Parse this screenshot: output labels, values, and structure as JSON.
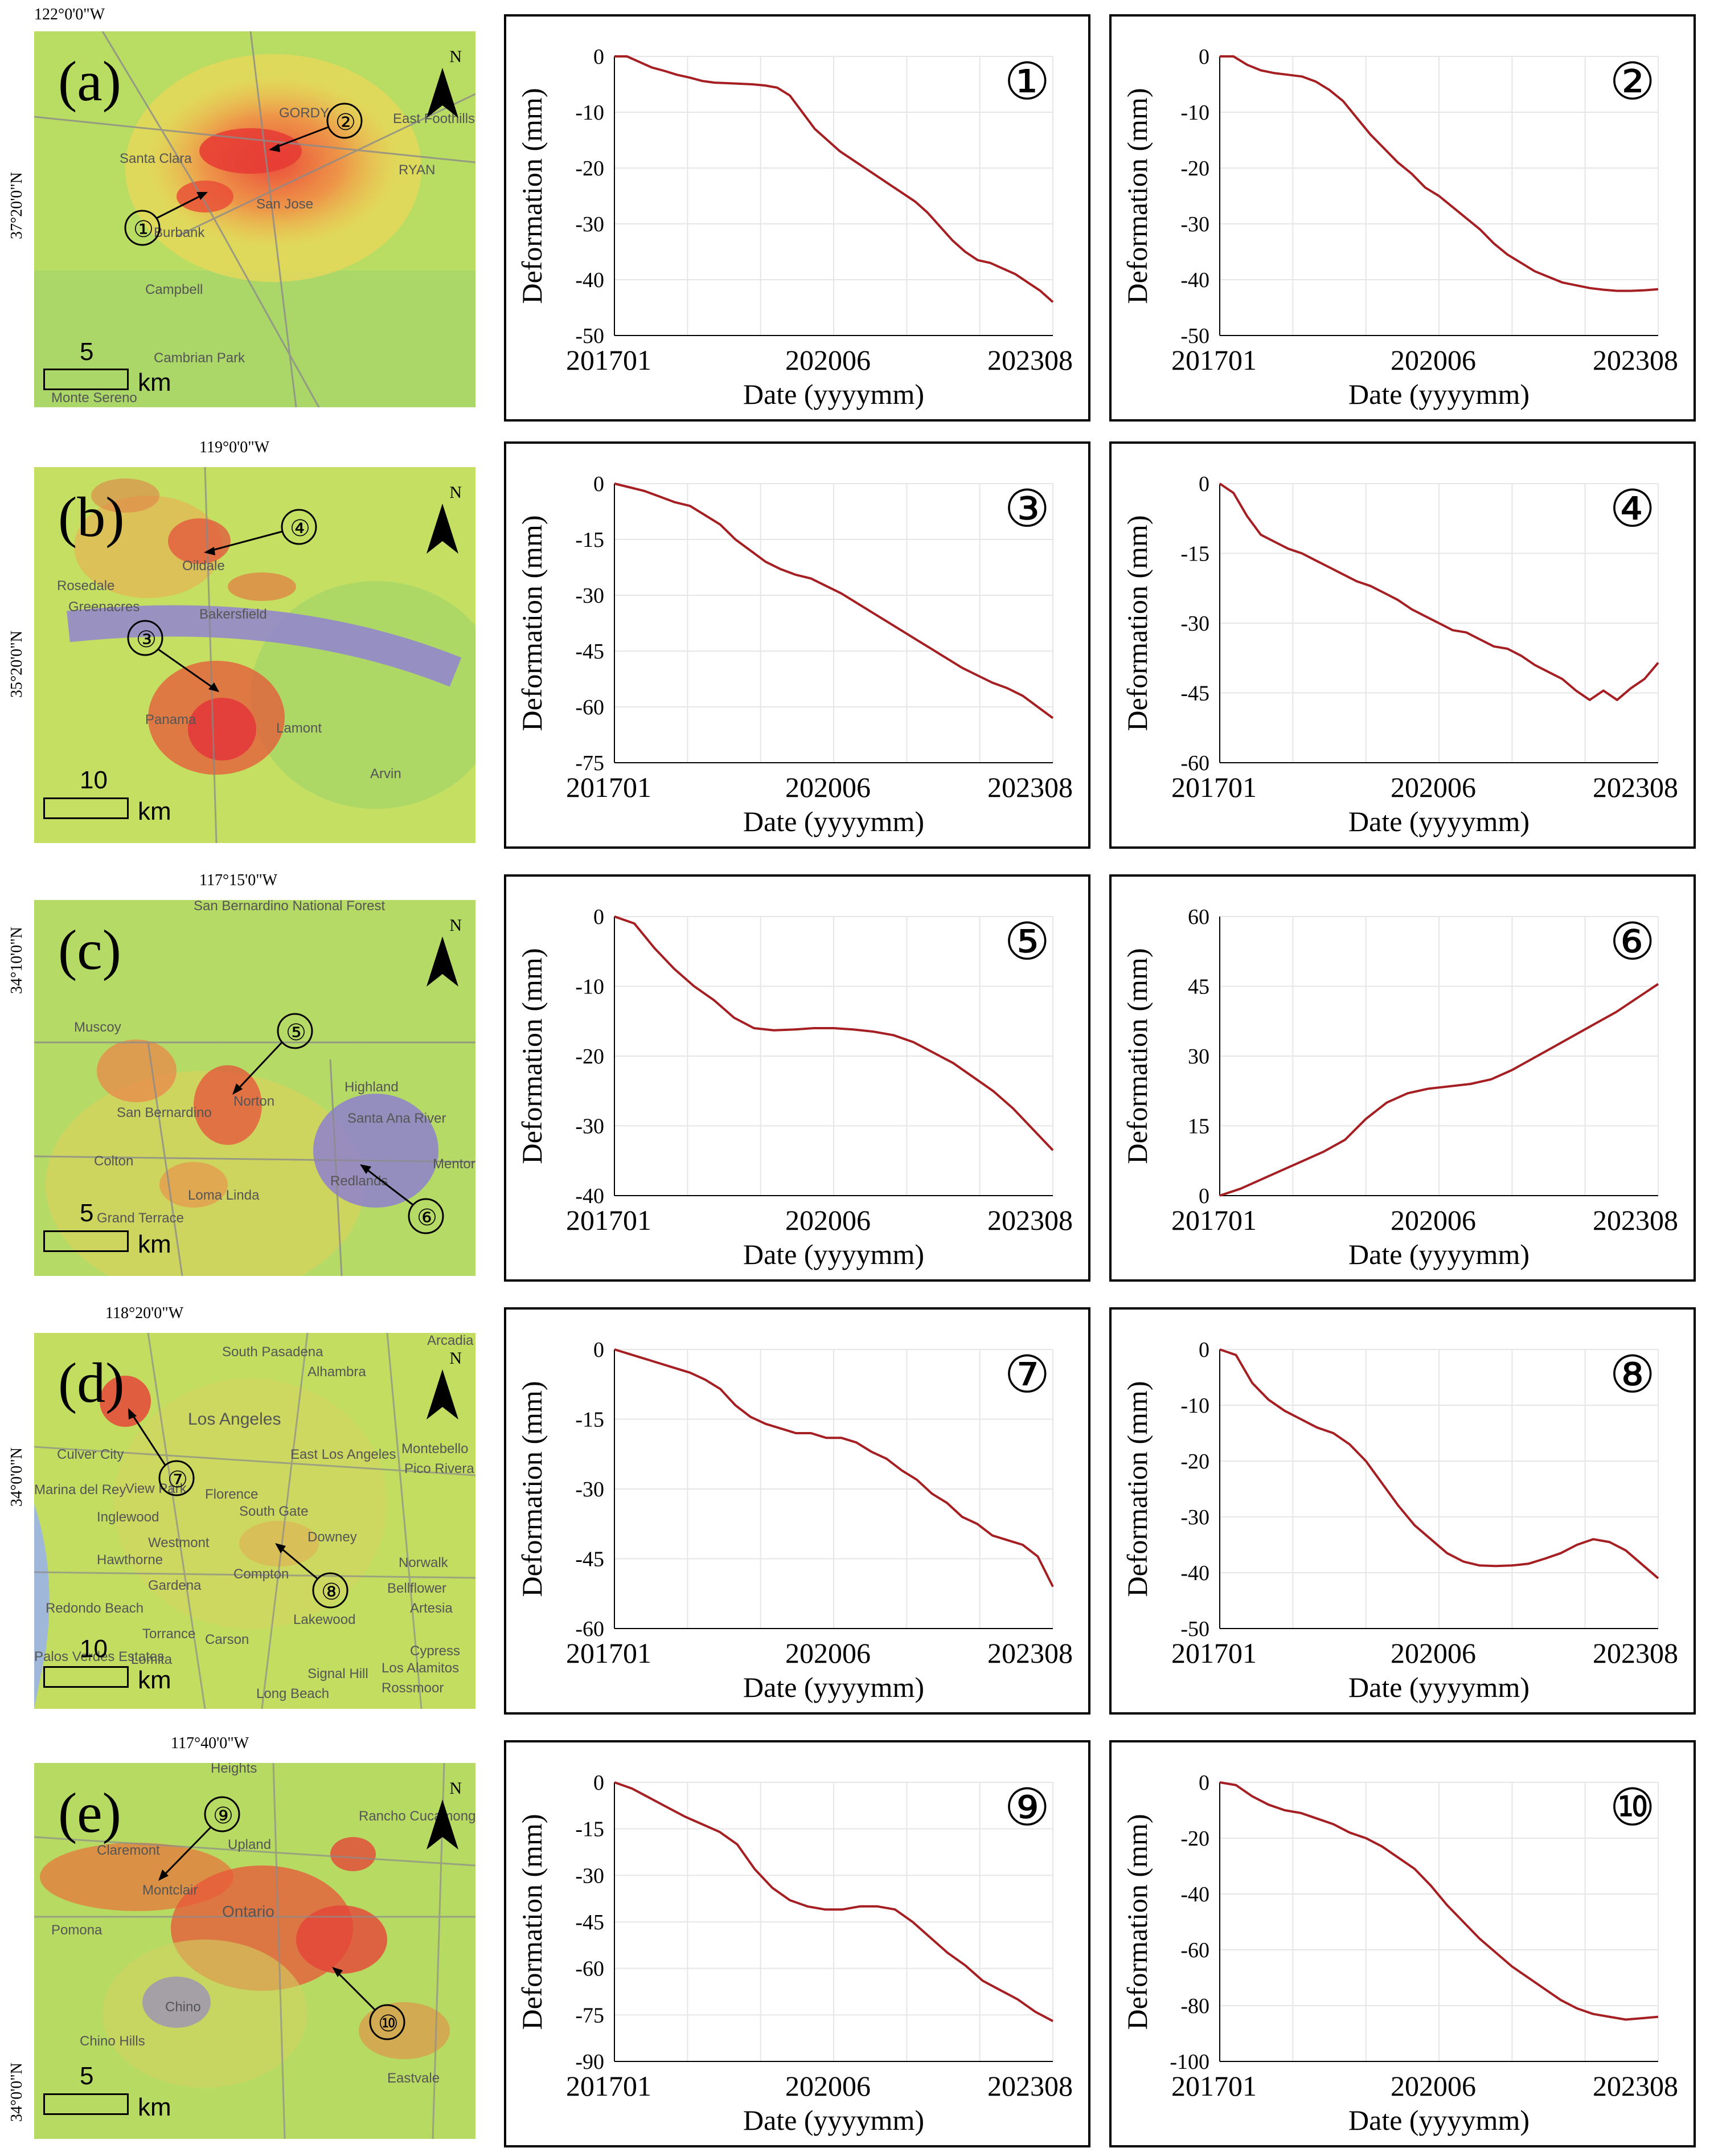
{
  "colors": {
    "line": "#a51e22",
    "grid": "#e6e6e6",
    "subsidence": "#e8413a",
    "uplift": "#7f6fd6"
  },
  "rows": [
    {
      "panel": "(a)",
      "coord_top": "122°0'0\"W",
      "coord_side": "37°20'0\"N",
      "scale_value": "5",
      "scale_unit": "km",
      "north": "N",
      "north_icon": "north-arrow-icon",
      "places": [
        "Santa Clara",
        "San Jose",
        "Burbank",
        "Campbell",
        "Cambrian Park",
        "East Foothills",
        "Monte Sereno",
        "RYAN",
        "GORDY"
      ]
    },
    {
      "panel": "(b)",
      "coord_top": "119°0'0\"W",
      "coord_side": "35°20'0\"N",
      "scale_value": "10",
      "scale_unit": "km",
      "north": "N",
      "north_icon": "north-arrow-icon",
      "places": [
        "Rosedale",
        "Greenacres",
        "Bakersfield",
        "Oildale",
        "Panama",
        "Lamont",
        "Arvin"
      ]
    },
    {
      "panel": "(c)",
      "coord_top": "117°15'0\"W",
      "coord_side": "34°10'0\"N",
      "scale_value": "5",
      "scale_unit": "km",
      "north": "N",
      "north_icon": "north-arrow-icon",
      "places": [
        "San Bernardino National Forest",
        "Muscoy",
        "San Bernardino",
        "Colton",
        "Loma Linda",
        "Grand Terrace",
        "Highland",
        "Redlands",
        "Santa Ana River",
        "Norton",
        "Mentone"
      ]
    },
    {
      "panel": "(d)",
      "coord_top": "118°20'0\"W",
      "coord_side": "34°0'0\"N",
      "scale_value": "10",
      "scale_unit": "km",
      "north": "N",
      "north_icon": "north-arrow-icon",
      "places": [
        "South Pasadena",
        "Alhambra",
        "Los Angeles",
        "Culver City",
        "View Park",
        "Inglewood",
        "Westmont",
        "Hawthorne",
        "Compton",
        "South Gate",
        "Downey",
        "Norwalk",
        "Bellflower",
        "Torrance",
        "Carson",
        "Lakewood",
        "Long Beach",
        "Redondo Beach",
        "Montebello",
        "Pico Rivera",
        "Artesia",
        "Cypress",
        "Los Alamitos",
        "Signal Hill",
        "Rossmoor",
        "Florence",
        "East Los Angeles",
        "Gardena",
        "Lomita",
        "Palos Verdes Estates",
        "Marina del Rey",
        "Arcadia"
      ]
    },
    {
      "panel": "(e)",
      "coord_top": "117°40'0\"W",
      "coord_side": "34°0'0\"N",
      "scale_value": "5",
      "scale_unit": "km",
      "north": "N",
      "north_icon": "north-arrow-icon",
      "places": [
        "Claremont",
        "Upland",
        "Rancho Cucamonga",
        "Montclair",
        "Ontario",
        "Pomona",
        "Chino",
        "Chino Hills",
        "Eastvale",
        "Heights"
      ]
    }
  ],
  "chart_data": [
    {
      "type": "line",
      "id": "1",
      "title": "①",
      "xlabel": "Date (yyyymm)",
      "ylabel": "Deformation (mm)",
      "xtick_labels": [
        "201701",
        "202006",
        "202308"
      ],
      "yticks": [
        0,
        -10,
        -20,
        -30,
        -40,
        -50
      ],
      "ylim": [
        -50,
        0
      ],
      "series": [
        {
          "name": "point 1",
          "values": [
            0,
            0,
            -1,
            -2,
            -2.6,
            -3.3,
            -3.8,
            -4.4,
            -4.7,
            -4.8,
            -4.9,
            -5,
            -5.2,
            -5.6,
            -7,
            -10,
            -13,
            -15,
            -17,
            -18.5,
            -20,
            -21.5,
            -23,
            -24.5,
            -26,
            -28,
            -30.5,
            -33,
            -35,
            -36.5,
            -37,
            -38,
            -39,
            -40.5,
            -42,
            -44
          ]
        }
      ]
    },
    {
      "type": "line",
      "id": "2",
      "title": "②",
      "xlabel": "Date (yyyymm)",
      "ylabel": "Deformation (mm)",
      "xtick_labels": [
        "201701",
        "202006",
        "202308"
      ],
      "yticks": [
        0,
        -10,
        -20,
        -30,
        -40,
        -50
      ],
      "ylim": [
        -50,
        0
      ],
      "series": [
        {
          "name": "point 2",
          "values": [
            0,
            0,
            -1.5,
            -2.5,
            -3,
            -3.3,
            -3.6,
            -4.5,
            -6,
            -8,
            -11,
            -14,
            -16.5,
            -19,
            -21,
            -23.5,
            -25,
            -27,
            -29,
            -31,
            -33.5,
            -35.5,
            -37,
            -38.5,
            -39.5,
            -40.5,
            -41,
            -41.5,
            -41.8,
            -42,
            -42,
            -41.9,
            -41.7
          ]
        }
      ]
    },
    {
      "type": "line",
      "id": "3",
      "title": "③",
      "xlabel": "Date (yyyymm)",
      "ylabel": "Deformation (mm)",
      "xtick_labels": [
        "201701",
        "202006",
        "202308"
      ],
      "yticks": [
        0,
        -15,
        -30,
        -45,
        -60,
        -75
      ],
      "ylim": [
        -75,
        0
      ],
      "series": [
        {
          "name": "point 3",
          "values": [
            0,
            -1,
            -2,
            -3.5,
            -5,
            -6,
            -8.5,
            -11,
            -15,
            -18,
            -21,
            -23,
            -24.5,
            -25.5,
            -27.5,
            -29.5,
            -32,
            -34.5,
            -37,
            -39.5,
            -42,
            -44.5,
            -47,
            -49.5,
            -51.5,
            -53.5,
            -55,
            -57,
            -60,
            -63
          ]
        }
      ]
    },
    {
      "type": "line",
      "id": "4",
      "title": "④",
      "xlabel": "Date (yyyymm)",
      "ylabel": "Deformation (mm)",
      "xtick_labels": [
        "201701",
        "202006",
        "202308"
      ],
      "yticks": [
        0,
        -15,
        -30,
        -45,
        -60
      ],
      "ylim": [
        -60,
        0
      ],
      "series": [
        {
          "name": "point 4",
          "values": [
            0,
            -2,
            -7,
            -11,
            -12.5,
            -14,
            -15,
            -16.5,
            -18,
            -19.5,
            -21,
            -22,
            -23.5,
            -25,
            -27,
            -28.5,
            -30,
            -31.5,
            -32,
            -33.5,
            -35,
            -35.5,
            -37,
            -39,
            -40.5,
            -42,
            -44.5,
            -46.5,
            -44.5,
            -46.5,
            -44,
            -42,
            -38.5
          ]
        }
      ]
    },
    {
      "type": "line",
      "id": "5",
      "title": "⑤",
      "xlabel": "Date (yyyymm)",
      "ylabel": "Deformation (mm)",
      "xtick_labels": [
        "201701",
        "202006",
        "202308"
      ],
      "yticks": [
        0,
        -10,
        -20,
        -30,
        -40
      ],
      "ylim": [
        -40,
        0
      ],
      "series": [
        {
          "name": "point 5",
          "values": [
            0,
            -1,
            -4.5,
            -7.5,
            -10,
            -12,
            -14.5,
            -16,
            -16.3,
            -16.2,
            -16,
            -16,
            -16.2,
            -16.5,
            -17,
            -18,
            -19.5,
            -21,
            -23,
            -25,
            -27.5,
            -30.5,
            -33.5
          ]
        }
      ]
    },
    {
      "type": "line",
      "id": "6",
      "title": "⑥",
      "xlabel": "Date (yyyymm)",
      "ylabel": "Deformation (mm)",
      "xtick_labels": [
        "201701",
        "202006",
        "202308"
      ],
      "yticks": [
        0,
        15,
        30,
        45,
        60
      ],
      "ylim": [
        0,
        60
      ],
      "series": [
        {
          "name": "point 6",
          "values": [
            0,
            1.5,
            3.5,
            5.5,
            7.5,
            9.5,
            12,
            16.5,
            20,
            22,
            23,
            23.5,
            24,
            25,
            27,
            29.5,
            32,
            34.5,
            37,
            39.5,
            42.5,
            45.5
          ]
        }
      ]
    },
    {
      "type": "line",
      "id": "7",
      "title": "⑦",
      "xlabel": "Date (yyyymm)",
      "ylabel": "Deformation (mm)",
      "xtick_labels": [
        "201701",
        "202006",
        "202308"
      ],
      "yticks": [
        0,
        -15,
        -30,
        -45,
        -60
      ],
      "ylim": [
        -60,
        0
      ],
      "series": [
        {
          "name": "point 7",
          "values": [
            0,
            -1,
            -2,
            -3,
            -4,
            -5,
            -6.5,
            -8.5,
            -12,
            -14.5,
            -16,
            -17,
            -18,
            -18,
            -19,
            -19,
            -20,
            -22,
            -23.5,
            -26,
            -28,
            -31,
            -33,
            -36,
            -37.5,
            -40,
            -41,
            -42,
            -44.5,
            -51
          ]
        }
      ]
    },
    {
      "type": "line",
      "id": "8",
      "title": "⑧",
      "xlabel": "Date (yyyymm)",
      "ylabel": "Deformation (mm)",
      "xtick_labels": [
        "201701",
        "202006",
        "202308"
      ],
      "yticks": [
        0,
        -10,
        -20,
        -30,
        -40,
        -50
      ],
      "ylim": [
        -50,
        0
      ],
      "series": [
        {
          "name": "point 8",
          "values": [
            0,
            -1,
            -6,
            -9,
            -11,
            -12.5,
            -14,
            -15,
            -17,
            -20,
            -24,
            -28,
            -31.5,
            -34,
            -36.5,
            -38,
            -38.7,
            -38.8,
            -38.7,
            -38.4,
            -37.5,
            -36.5,
            -35,
            -34,
            -34.5,
            -36,
            -38.5,
            -41
          ]
        }
      ]
    },
    {
      "type": "line",
      "id": "9",
      "title": "⑨",
      "xlabel": "Date (yyyymm)",
      "ylabel": "Deformation (mm)",
      "xtick_labels": [
        "201701",
        "202006",
        "202308"
      ],
      "yticks": [
        0,
        -15,
        -30,
        -45,
        -60,
        -75,
        -90
      ],
      "ylim": [
        -90,
        0
      ],
      "series": [
        {
          "name": "point 9",
          "values": [
            0,
            -2,
            -5,
            -8,
            -11,
            -13.5,
            -16,
            -20,
            -28,
            -34,
            -38,
            -40,
            -41,
            -41,
            -40,
            -40,
            -41,
            -45,
            -50,
            -55,
            -59,
            -64,
            -67,
            -70,
            -74,
            -77
          ]
        }
      ]
    },
    {
      "type": "line",
      "id": "10",
      "title": "⑩",
      "xlabel": "Date (yyyymm)",
      "ylabel": "Deformation (mm)",
      "xtick_labels": [
        "201701",
        "202006",
        "202308"
      ],
      "yticks": [
        0,
        -20,
        -40,
        -60,
        -80,
        -100
      ],
      "ylim": [
        -100,
        0
      ],
      "series": [
        {
          "name": "point 10",
          "values": [
            0,
            -1,
            -5,
            -8,
            -10,
            -11,
            -13,
            -15,
            -18,
            -20,
            -23,
            -27,
            -31,
            -37,
            -44,
            -50,
            -56,
            -61,
            -66,
            -70,
            -74,
            -78,
            -81,
            -83,
            -84,
            -85,
            -84.5,
            -84
          ]
        }
      ]
    }
  ]
}
